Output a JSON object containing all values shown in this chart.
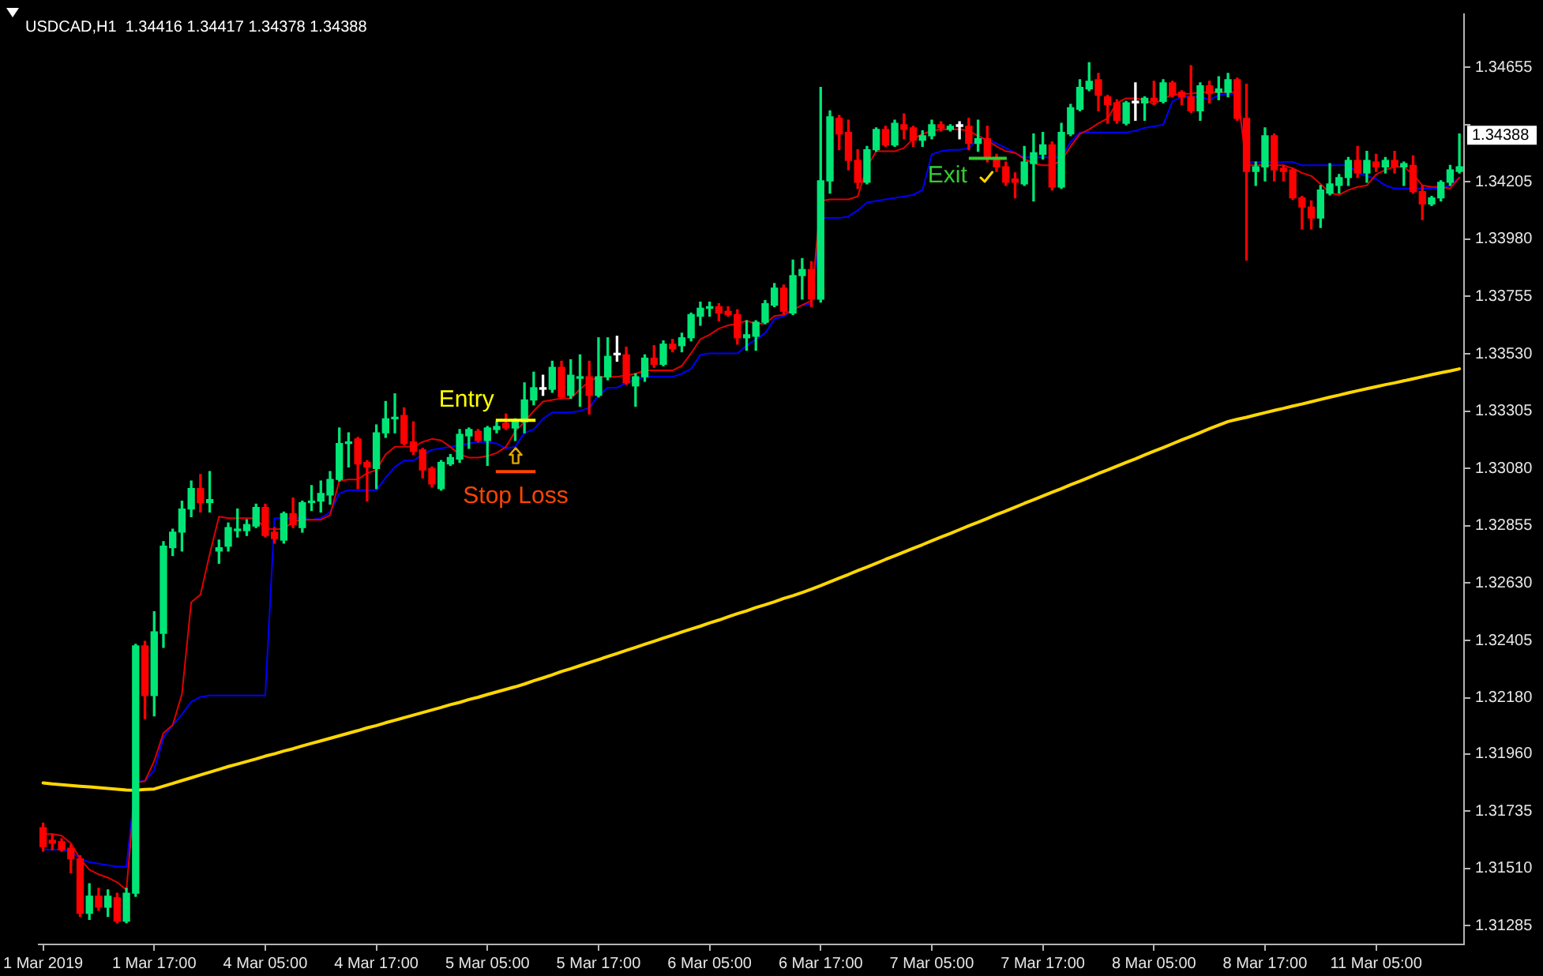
{
  "chart_data": {
    "type": "candlestick",
    "title": "USDCAD,H1  1.34416 1.34417 1.34378 1.34388",
    "categories": [
      "1 Mar 2019",
      null,
      null,
      null,
      null,
      null,
      null,
      null,
      null,
      null,
      null,
      null,
      "1 Mar 17:00",
      null,
      null,
      null,
      null,
      null,
      null,
      null,
      null,
      null,
      null,
      null,
      "4 Mar 05:00",
      null,
      null,
      null,
      null,
      null,
      null,
      null,
      null,
      null,
      null,
      null,
      "4 Mar 17:00",
      null,
      null,
      null,
      null,
      null,
      null,
      null,
      null,
      null,
      null,
      null,
      "5 Mar 05:00",
      null,
      null,
      null,
      null,
      null,
      null,
      null,
      null,
      null,
      null,
      null,
      "5 Mar 17:00",
      null,
      null,
      null,
      null,
      null,
      null,
      null,
      null,
      null,
      null,
      null,
      "6 Mar 05:00",
      null,
      null,
      null,
      null,
      null,
      null,
      null,
      null,
      null,
      null,
      null,
      "6 Mar 17:00",
      null,
      null,
      null,
      null,
      null,
      null,
      null,
      null,
      null,
      null,
      null,
      "7 Mar 05:00",
      null,
      null,
      null,
      null,
      null,
      null,
      null,
      null,
      null,
      null,
      null,
      "7 Mar 17:00",
      null,
      null,
      null,
      null,
      null,
      null,
      null,
      null,
      null,
      null,
      null,
      "8 Mar 05:00",
      null,
      null,
      null,
      null,
      null,
      null,
      null,
      null,
      null,
      null,
      null,
      "8 Mar 17:00",
      null,
      null,
      null,
      null,
      null,
      null,
      null,
      null,
      null,
      null,
      null,
      "11 Mar 05:00",
      null,
      null,
      null,
      null,
      null,
      null,
      null,
      null,
      null
    ],
    "ohlc": [
      [
        1.3167,
        1.31688,
        1.31578,
        1.31596
      ],
      [
        1.31621,
        1.31645,
        1.31584,
        1.31609
      ],
      [
        1.31615,
        1.31627,
        1.31578,
        1.31584
      ],
      [
        1.3159,
        1.31603,
        1.31493,
        1.31548
      ],
      [
        1.31548,
        1.3156,
        1.31322,
        1.31334
      ],
      [
        1.31334,
        1.3145,
        1.3131,
        1.31401
      ],
      [
        1.31401,
        1.31432,
        1.31346,
        1.31358
      ],
      [
        1.31358,
        1.31426,
        1.31322,
        1.31401
      ],
      [
        1.31395,
        1.31413,
        1.31297,
        1.31303
      ],
      [
        1.31303,
        1.31432,
        1.31297,
        1.31413
      ],
      [
        1.31413,
        1.3239,
        1.31401,
        1.32384
      ],
      [
        1.32384,
        1.32402,
        1.32097,
        1.32189
      ],
      [
        1.32189,
        1.32518,
        1.32109,
        1.32439
      ],
      [
        1.32433,
        1.32793,
        1.32378,
        1.32775
      ],
      [
        1.32769,
        1.32842,
        1.32738,
        1.3283
      ],
      [
        1.3283,
        1.32952,
        1.32756,
        1.32921
      ],
      [
        1.32921,
        1.33031,
        1.32891,
        1.33001
      ],
      [
        1.33001,
        1.33056,
        1.32909,
        1.32946
      ],
      [
        1.32946,
        1.33068,
        1.32909,
        1.32958
      ],
      [
        1.32756,
        1.32799,
        1.32708,
        1.32769
      ],
      [
        1.32775,
        1.32866,
        1.32756,
        1.32848
      ],
      [
        1.32836,
        1.32921,
        1.32811,
        1.32842
      ],
      [
        1.32836,
        1.32879,
        1.32817,
        1.3286
      ],
      [
        1.32854,
        1.3294,
        1.32848,
        1.32927
      ],
      [
        1.32927,
        1.3294,
        1.32811,
        1.32817
      ],
      [
        1.3283,
        1.32848,
        1.32787,
        1.32805
      ],
      [
        1.32799,
        1.32909,
        1.32787,
        1.32903
      ],
      [
        1.32903,
        1.32964,
        1.32848,
        1.3286
      ],
      [
        1.32848,
        1.32952,
        1.3283,
        1.32946
      ],
      [
        1.32946,
        1.33013,
        1.32915,
        1.32952
      ],
      [
        1.32952,
        1.33031,
        1.32909,
        1.32982
      ],
      [
        1.32976,
        1.33068,
        1.3294,
        1.33037
      ],
      [
        1.33037,
        1.33239,
        1.33031,
        1.33178
      ],
      [
        1.33178,
        1.3322,
        1.33086,
        1.33184
      ],
      [
        1.33196,
        1.33202,
        1.33001,
        1.33098
      ],
      [
        1.33104,
        1.33111,
        1.32952,
        1.33086
      ],
      [
        1.3308,
        1.33251,
        1.33001,
        1.3322
      ],
      [
        1.3322,
        1.33343,
        1.33202,
        1.33275
      ],
      [
        1.33275,
        1.33373,
        1.3322,
        1.33281
      ],
      [
        1.33288,
        1.33318,
        1.33172,
        1.33178
      ],
      [
        1.33184,
        1.33263,
        1.33135,
        1.33147
      ],
      [
        1.33153,
        1.33159,
        1.33043,
        1.33074
      ],
      [
        1.3308,
        1.33086,
        1.33007,
        1.33019
      ],
      [
        1.33001,
        1.33111,
        1.32995,
        1.33104
      ],
      [
        1.33098,
        1.33135,
        1.33092,
        1.33123
      ],
      [
        1.33117,
        1.33233,
        1.33104,
        1.33214
      ],
      [
        1.33208,
        1.33239,
        1.33159,
        1.33233
      ],
      [
        1.33226,
        1.33233,
        1.33184,
        1.3319
      ],
      [
        1.3319,
        1.33245,
        1.33092,
        1.33239
      ],
      [
        1.33233,
        1.33263,
        1.3322,
        1.33245
      ],
      [
        1.33257,
        1.33294,
        1.33233,
        1.33239
      ],
      [
        1.33239,
        1.33275,
        1.3319,
        1.33269
      ],
      [
        1.33263,
        1.33416,
        1.3322,
        1.33349
      ],
      [
        1.33349,
        1.33458,
        1.3333,
        1.33397
      ],
      [
        1.33391,
        1.33446,
        1.33367,
        1.33391
      ],
      [
        1.33391,
        1.33501,
        1.33379,
        1.33477
      ],
      [
        1.33477,
        1.33501,
        1.33355,
        1.33361
      ],
      [
        1.33367,
        1.33507,
        1.33355,
        1.33446
      ],
      [
        1.33434,
        1.33526,
        1.33324,
        1.3344
      ],
      [
        1.3344,
        1.33501,
        1.33294,
        1.33367
      ],
      [
        1.33367,
        1.33593,
        1.33361,
        1.3344
      ],
      [
        1.3344,
        1.33593,
        1.33428,
        1.3352
      ],
      [
        1.33526,
        1.33599,
        1.33501,
        1.33526
      ],
      [
        1.33526,
        1.33556,
        1.3341,
        1.33416
      ],
      [
        1.33404,
        1.33452,
        1.33324,
        1.3344
      ],
      [
        1.3344,
        1.33526,
        1.33422,
        1.33513
      ],
      [
        1.33513,
        1.33562,
        1.33477,
        1.33489
      ],
      [
        1.33489,
        1.33581,
        1.33483,
        1.33568
      ],
      [
        1.33568,
        1.33587,
        1.33538,
        1.3355
      ],
      [
        1.33562,
        1.33611,
        1.33538,
        1.33593
      ],
      [
        1.33593,
        1.3369,
        1.33581,
        1.33684
      ],
      [
        1.33678,
        1.33733,
        1.33642,
        1.33709
      ],
      [
        1.33709,
        1.33733,
        1.33678,
        1.33715
      ],
      [
        1.33715,
        1.33727,
        1.3366,
        1.3369
      ],
      [
        1.33697,
        1.33715,
        1.33678,
        1.33684
      ],
      [
        1.33684,
        1.33703,
        1.33568,
        1.33593
      ],
      [
        1.33593,
        1.3366,
        1.33544,
        1.33605
      ],
      [
        1.33599,
        1.3366,
        1.33544,
        1.33654
      ],
      [
        1.33654,
        1.33739,
        1.33648,
        1.33727
      ],
      [
        1.33721,
        1.33806,
        1.33715,
        1.33788
      ],
      [
        1.33788,
        1.338,
        1.33684,
        1.33697
      ],
      [
        1.3369,
        1.33898,
        1.33684,
        1.33837
      ],
      [
        1.33837,
        1.33904,
        1.33745,
        1.33861
      ],
      [
        1.33861,
        1.33892,
        1.33715,
        1.33745
      ],
      [
        1.33745,
        1.34576,
        1.33733,
        1.34209
      ],
      [
        1.34209,
        1.34484,
        1.34161,
        1.3446
      ],
      [
        1.34454,
        1.34466,
        1.34331,
        1.34393
      ],
      [
        1.34399,
        1.34447,
        1.34252,
        1.34289
      ],
      [
        1.34289,
        1.34331,
        1.34179,
        1.34203
      ],
      [
        1.34203,
        1.34344,
        1.34197,
        1.34331
      ],
      [
        1.34331,
        1.34417,
        1.34325,
        1.34411
      ],
      [
        1.34411,
        1.34423,
        1.34344,
        1.3435
      ],
      [
        1.3435,
        1.34447,
        1.34344,
        1.34435
      ],
      [
        1.34429,
        1.34472,
        1.34374,
        1.34411
      ],
      [
        1.34417,
        1.34423,
        1.34344,
        1.34368
      ],
      [
        1.34368,
        1.34405,
        1.34344,
        1.34386
      ],
      [
        1.34386,
        1.34447,
        1.34374,
        1.34429
      ],
      [
        1.34429,
        1.34441,
        1.34405,
        1.34417
      ],
      [
        1.34411,
        1.34429,
        1.34405,
        1.34423
      ],
      [
        1.34423,
        1.34441,
        1.34374,
        1.34423
      ],
      [
        1.34423,
        1.34454,
        1.34331,
        1.34356
      ],
      [
        1.34356,
        1.34447,
        1.34325,
        1.34374
      ],
      [
        1.34374,
        1.34423,
        1.34283,
        1.34301
      ],
      [
        1.34301,
        1.34313,
        1.34246,
        1.34264
      ],
      [
        1.34264,
        1.34283,
        1.34191,
        1.34203
      ],
      [
        1.34216,
        1.3424,
        1.34142,
        1.34203
      ],
      [
        1.34197,
        1.34344,
        1.34191,
        1.34283
      ],
      [
        1.34277,
        1.34393,
        1.3413,
        1.34319
      ],
      [
        1.34313,
        1.34399,
        1.34295,
        1.3435
      ],
      [
        1.3435,
        1.34362,
        1.34173,
        1.34185
      ],
      [
        1.34185,
        1.34435,
        1.34179,
        1.34399
      ],
      [
        1.34393,
        1.34509,
        1.34386,
        1.34496
      ],
      [
        1.3449,
        1.34606,
        1.34484,
        1.34576
      ],
      [
        1.3457,
        1.34673,
        1.34563,
        1.346
      ],
      [
        1.34606,
        1.34631,
        1.34484,
        1.34545
      ],
      [
        1.34539,
        1.34545,
        1.34435,
        1.34509
      ],
      [
        1.34515,
        1.34527,
        1.34435,
        1.34447
      ],
      [
        1.34435,
        1.34521,
        1.34429,
        1.34515
      ],
      [
        1.34515,
        1.34594,
        1.34447,
        1.34515
      ],
      [
        1.34515,
        1.34539,
        1.34447,
        1.34533
      ],
      [
        1.34533,
        1.346,
        1.34509,
        1.34521
      ],
      [
        1.34521,
        1.34606,
        1.34515,
        1.34594
      ],
      [
        1.34594,
        1.346,
        1.34539,
        1.34545
      ],
      [
        1.34557,
        1.34563,
        1.34509,
        1.34539
      ],
      [
        1.34539,
        1.34661,
        1.34478,
        1.34484
      ],
      [
        1.34484,
        1.34594,
        1.34447,
        1.34582
      ],
      [
        1.34582,
        1.346,
        1.34515,
        1.34551
      ],
      [
        1.34557,
        1.34618,
        1.34527,
        1.3457
      ],
      [
        1.34557,
        1.34631,
        1.34539,
        1.34606
      ],
      [
        1.34606,
        1.34612,
        1.34447,
        1.34454
      ],
      [
        1.34454,
        1.34588,
        1.33898,
        1.34246
      ],
      [
        1.34246,
        1.34283,
        1.34191,
        1.34264
      ],
      [
        1.34264,
        1.34417,
        1.34209,
        1.34386
      ],
      [
        1.34386,
        1.34393,
        1.34209,
        1.34252
      ],
      [
        1.34258,
        1.3427,
        1.34209,
        1.34246
      ],
      [
        1.34252,
        1.34258,
        1.34136,
        1.34142
      ],
      [
        1.34142,
        1.34148,
        1.3402,
        1.34106
      ],
      [
        1.34106,
        1.3413,
        1.3402,
        1.34063
      ],
      [
        1.34063,
        1.34191,
        1.34026,
        1.34173
      ],
      [
        1.34161,
        1.34277,
        1.34154,
        1.34197
      ],
      [
        1.34191,
        1.34234,
        1.34161,
        1.34222
      ],
      [
        1.34222,
        1.34301,
        1.34191,
        1.34289
      ],
      [
        1.34289,
        1.34344,
        1.34222,
        1.3424
      ],
      [
        1.3424,
        1.34325,
        1.34203,
        1.34289
      ],
      [
        1.34283,
        1.34313,
        1.34246,
        1.34264
      ],
      [
        1.34264,
        1.34301,
        1.3424,
        1.34289
      ],
      [
        1.34289,
        1.34325,
        1.3424,
        1.34264
      ],
      [
        1.34264,
        1.34283,
        1.34191,
        1.34277
      ],
      [
        1.3427,
        1.34307,
        1.34161,
        1.34167
      ],
      [
        1.34167,
        1.34191,
        1.34057,
        1.34118
      ],
      [
        1.34118,
        1.34148,
        1.34112,
        1.34142
      ],
      [
        1.34142,
        1.34209,
        1.3413,
        1.34203
      ],
      [
        1.34203,
        1.3427,
        1.34191,
        1.34252
      ],
      [
        1.34246,
        1.34393,
        1.3424,
        1.34264
      ]
    ],
    "colors": [
      "#ff0000",
      "#ff0000",
      "#ff0000",
      "#ff0000",
      "#ff0000",
      "#00e676",
      "#ff0000",
      "#00e676",
      "#ff0000",
      "#00e676",
      "#00e676",
      "#ff0000",
      "#00e676",
      "#00e676",
      "#00e676",
      "#00e676",
      "#00e676",
      "#ff0000",
      "#00e676",
      "#00e676",
      "#00e676",
      "#00e676",
      "#00e676",
      "#00e676",
      "#ff0000",
      "#ff0000",
      "#00e676",
      "#ff0000",
      "#00e676",
      "#00e676",
      "#00e676",
      "#00e676",
      "#00e676",
      "#00e676",
      "#ff0000",
      "#ff0000",
      "#00e676",
      "#00e676",
      "#00e676",
      "#ff0000",
      "#ff0000",
      "#ff0000",
      "#ff0000",
      "#00e676",
      "#00e676",
      "#00e676",
      "#00e676",
      "#ff0000",
      "#00e676",
      "#00e676",
      "#ff0000",
      "#00e676",
      "#00e676",
      "#00e676",
      "#ffffff",
      "#00e676",
      "#ff0000",
      "#00e676",
      "#00e676",
      "#ff0000",
      "#00e676",
      "#00e676",
      "#ffffff",
      "#ff0000",
      "#00e676",
      "#00e676",
      "#ff0000",
      "#00e676",
      "#ff0000",
      "#00e676",
      "#00e676",
      "#00e676",
      "#00e676",
      "#ff0000",
      "#ff0000",
      "#ff0000",
      "#00e676",
      "#00e676",
      "#00e676",
      "#00e676",
      "#ff0000",
      "#00e676",
      "#00e676",
      "#ff0000",
      "#00e676",
      "#00e676",
      "#ff0000",
      "#ff0000",
      "#ff0000",
      "#00e676",
      "#00e676",
      "#ff0000",
      "#00e676",
      "#ff0000",
      "#ff0000",
      "#00e676",
      "#00e676",
      "#ff0000",
      "#00e676",
      "#ffffff",
      "#ff0000",
      "#00e676",
      "#ff0000",
      "#ff0000",
      "#ff0000",
      "#ff0000",
      "#00e676",
      "#00e676",
      "#00e676",
      "#ff0000",
      "#00e676",
      "#00e676",
      "#00e676",
      "#00e676",
      "#ff0000",
      "#ff0000",
      "#ff0000",
      "#00e676",
      "#ffffff",
      "#00e676",
      "#ff0000",
      "#00e676",
      "#ff0000",
      "#ff0000",
      "#ff0000",
      "#00e676",
      "#ff0000",
      "#00e676",
      "#00e676",
      "#ff0000",
      "#ff0000",
      "#00e676",
      "#00e676",
      "#ff0000",
      "#ff0000",
      "#ff0000",
      "#ff0000",
      "#ff0000",
      "#00e676",
      "#00e676",
      "#00e676",
      "#00e676",
      "#ff0000",
      "#00e676",
      "#ff0000",
      "#00e676",
      "#ff0000",
      "#00e676",
      "#ff0000",
      "#ff0000",
      "#00e676",
      "#00e676",
      "#00e676",
      "#00e676"
    ],
    "series": [
      {
        "type": "line",
        "color": "#e00000",
        "values": [
          1.31645,
          1.31645,
          1.31639,
          1.31609,
          1.31548,
          1.31505,
          1.31487,
          1.31474,
          1.31456,
          1.31426,
          1.31847,
          1.31853,
          1.31932,
          1.32042,
          1.32073,
          1.32195,
          1.32555,
          1.32585,
          1.32744,
          1.32891,
          1.32885,
          1.32885,
          1.32885,
          1.32885,
          1.32842,
          1.32842,
          1.32842,
          1.32872,
          1.32879,
          1.32879,
          1.32879,
          1.32897,
          1.33031,
          1.33037,
          1.33037,
          1.33062,
          1.33074,
          1.33135,
          1.33165,
          1.33165,
          1.33165,
          1.33184,
          1.33196,
          1.3319,
          1.33165,
          1.33135,
          1.33123,
          1.33123,
          1.33129,
          1.33141,
          1.33165,
          1.33226,
          1.33263,
          1.33306,
          1.33343,
          1.33349,
          1.33355,
          1.33355,
          1.33391,
          1.33422,
          1.3344,
          1.3344,
          1.3344,
          1.33446,
          1.33452,
          1.33465,
          1.33465,
          1.33465,
          1.33465,
          1.33483,
          1.33532,
          1.33587,
          1.33605,
          1.33629,
          1.33642,
          1.33648,
          1.3366,
          1.33648,
          1.33648,
          1.33678,
          1.33684,
          1.33703,
          1.33721,
          1.33739,
          1.3413,
          1.34136,
          1.34136,
          1.34136,
          1.34148,
          1.34264,
          1.34325,
          1.34325,
          1.34325,
          1.34338,
          1.34374,
          1.34393,
          1.34405,
          1.34411,
          1.34411,
          1.34411,
          1.34405,
          1.34386,
          1.34368,
          1.34344,
          1.34325,
          1.34319,
          1.34295,
          1.34277,
          1.3427,
          1.3427,
          1.34289,
          1.34344,
          1.34393,
          1.34411,
          1.34435,
          1.34454,
          1.34515,
          1.34533,
          1.34533,
          1.34527,
          1.34509,
          1.34533,
          1.34545,
          1.34551,
          1.34551,
          1.34557,
          1.34557,
          1.34557,
          1.34557,
          1.34557,
          1.3427,
          1.3427,
          1.3427,
          1.3427,
          1.3427,
          1.34258,
          1.3424,
          1.34228,
          1.34197,
          1.34161,
          1.34154,
          1.34173,
          1.34185,
          1.34191,
          1.34234,
          1.34252,
          1.34264,
          1.34264,
          1.34234,
          1.34191,
          1.34185,
          1.34185,
          1.34179,
          1.34222
        ]
      },
      {
        "type": "line",
        "color": "#0000ff",
        "values": [
          1.31584,
          1.31584,
          1.31584,
          1.31578,
          1.31548,
          1.31535,
          1.31529,
          1.31523,
          1.31517,
          1.31517,
          1.31853,
          1.31853,
          1.31896,
          1.32024,
          1.32073,
          1.32115,
          1.32164,
          1.32183,
          1.32189,
          1.32189,
          1.32189,
          1.32189,
          1.32189,
          1.32189,
          1.32189,
          1.32885,
          1.32885,
          1.32885,
          1.32885,
          1.32879,
          1.32885,
          1.32909,
          1.32982,
          1.32995,
          1.32995,
          1.32995,
          1.32995,
          1.33043,
          1.33086,
          1.33111,
          1.33111,
          1.33135,
          1.33153,
          1.33159,
          1.33165,
          1.33172,
          1.33178,
          1.33184,
          1.33184,
          1.33178,
          1.33159,
          1.33165,
          1.3322,
          1.33233,
          1.33275,
          1.333,
          1.333,
          1.333,
          1.33306,
          1.33318,
          1.33367,
          1.33397,
          1.33397,
          1.33416,
          1.33428,
          1.3344,
          1.3344,
          1.3344,
          1.3344,
          1.33452,
          1.33471,
          1.33526,
          1.33532,
          1.33532,
          1.33532,
          1.33532,
          1.33562,
          1.33587,
          1.33611,
          1.33666,
          1.33678,
          1.33703,
          1.33721,
          1.33727,
          1.34063,
          1.34063,
          1.34063,
          1.34069,
          1.34093,
          1.34124,
          1.3413,
          1.34136,
          1.34142,
          1.34148,
          1.34154,
          1.34173,
          1.34313,
          1.34325,
          1.34331,
          1.34331,
          1.34338,
          1.34374,
          1.34374,
          1.34356,
          1.34338,
          1.34319,
          1.34301,
          1.34301,
          1.34301,
          1.34301,
          1.34301,
          1.34362,
          1.34399,
          1.34399,
          1.34399,
          1.34399,
          1.34399,
          1.34399,
          1.34405,
          1.34417,
          1.34423,
          1.34429,
          1.34521,
          1.34539,
          1.34539,
          1.34539,
          1.34527,
          1.34545,
          1.34551,
          1.34551,
          1.34283,
          1.34283,
          1.34283,
          1.34283,
          1.34283,
          1.34283,
          1.3427,
          1.3427,
          1.3427,
          1.3427,
          1.3427,
          1.3427,
          1.3424,
          1.34228,
          1.34216,
          1.34191,
          1.34179,
          1.34179,
          1.34179,
          1.34179,
          1.34179,
          1.34179,
          1.34191,
          1.34222
        ]
      },
      {
        "type": "line",
        "color": "#ffd700",
        "values": [
          1.31846,
          1.31842,
          1.31839,
          1.31836,
          1.31833,
          1.3183,
          1.31827,
          1.31824,
          1.31821,
          1.31818,
          1.31817,
          1.3182,
          1.31822,
          1.31833,
          1.31844,
          1.31855,
          1.31866,
          1.31877,
          1.31888,
          1.31899,
          1.3191,
          1.3192,
          1.3193,
          1.3194,
          1.31951,
          1.3196,
          1.31971,
          1.3198,
          1.31991,
          1.32001,
          1.32011,
          1.32021,
          1.32031,
          1.32041,
          1.32051,
          1.32062,
          1.32071,
          1.32082,
          1.32092,
          1.32102,
          1.32112,
          1.32122,
          1.32132,
          1.32142,
          1.32153,
          1.32162,
          1.32173,
          1.32182,
          1.32193,
          1.32203,
          1.32213,
          1.32223,
          1.32234,
          1.32247,
          1.32258,
          1.3227,
          1.32283,
          1.32294,
          1.32306,
          1.32318,
          1.3233,
          1.32342,
          1.32354,
          1.32366,
          1.32378,
          1.3239,
          1.32402,
          1.32414,
          1.32426,
          1.32438,
          1.3245,
          1.32461,
          1.32474,
          1.32485,
          1.32498,
          1.3251,
          1.32521,
          1.32534,
          1.32545,
          1.32557,
          1.3257,
          1.32581,
          1.32593,
          1.32606,
          1.3262,
          1.32635,
          1.3265,
          1.32664,
          1.32679,
          1.32693,
          1.32708,
          1.32723,
          1.32737,
          1.32752,
          1.32767,
          1.32781,
          1.32796,
          1.32811,
          1.32825,
          1.3284,
          1.32855,
          1.32869,
          1.32884,
          1.32899,
          1.32913,
          1.32928,
          1.32943,
          1.32957,
          1.32972,
          1.32987,
          1.33001,
          1.33016,
          1.3303,
          1.33045,
          1.3306,
          1.33074,
          1.33089,
          1.33104,
          1.33118,
          1.33133,
          1.33148,
          1.33162,
          1.33177,
          1.33192,
          1.33206,
          1.33221,
          1.33236,
          1.3325,
          1.33264,
          1.33273,
          1.33281,
          1.3329,
          1.33299,
          1.33308,
          1.33316,
          1.33325,
          1.33333,
          1.33342,
          1.33351,
          1.3336,
          1.33368,
          1.33377,
          1.33385,
          1.33393,
          1.33401,
          1.33409,
          1.33416,
          1.33424,
          1.33432,
          1.3344,
          1.33448,
          1.33456,
          1.33463,
          1.33471
        ]
      }
    ],
    "ylim": [
      1.31212,
      1.34863
    ],
    "yticks": [
      {
        "value": 1.34655,
        "label": "1.34655"
      },
      {
        "value": 1.3443,
        "label": null
      },
      {
        "value": 1.34205,
        "label": "1.34205"
      },
      {
        "value": 1.3398,
        "label": "1.33980"
      },
      {
        "value": 1.33755,
        "label": "1.33755"
      },
      {
        "value": 1.3353,
        "label": "1.33530"
      },
      {
        "value": 1.33305,
        "label": "1.33305"
      },
      {
        "value": 1.3308,
        "label": "1.33080"
      },
      {
        "value": 1.32855,
        "label": "1.32855"
      },
      {
        "value": 1.3263,
        "label": "1.32630"
      },
      {
        "value": 1.32405,
        "label": "1.32405"
      },
      {
        "value": 1.3218,
        "label": "1.32180"
      },
      {
        "value": 1.3196,
        "label": "1.31960"
      },
      {
        "value": 1.31735,
        "label": "1.31735"
      },
      {
        "value": 1.3151,
        "label": "1.31510"
      },
      {
        "value": 1.31285,
        "label": "1.31285"
      }
    ],
    "grid": false,
    "legend": false,
    "marker": "none",
    "ref_lines": [
      {
        "axis": "y",
        "value": 1.33269,
        "label": "Entry",
        "color": "#ffff00"
      },
      {
        "axis": "y",
        "value": 1.33068,
        "label": "Stop Loss",
        "color": "#ff4500"
      },
      {
        "axis": "y",
        "value": 1.34297,
        "label": "Exit",
        "color": "#32cd32"
      }
    ],
    "annotations": [
      "1.34388"
    ]
  }
}
